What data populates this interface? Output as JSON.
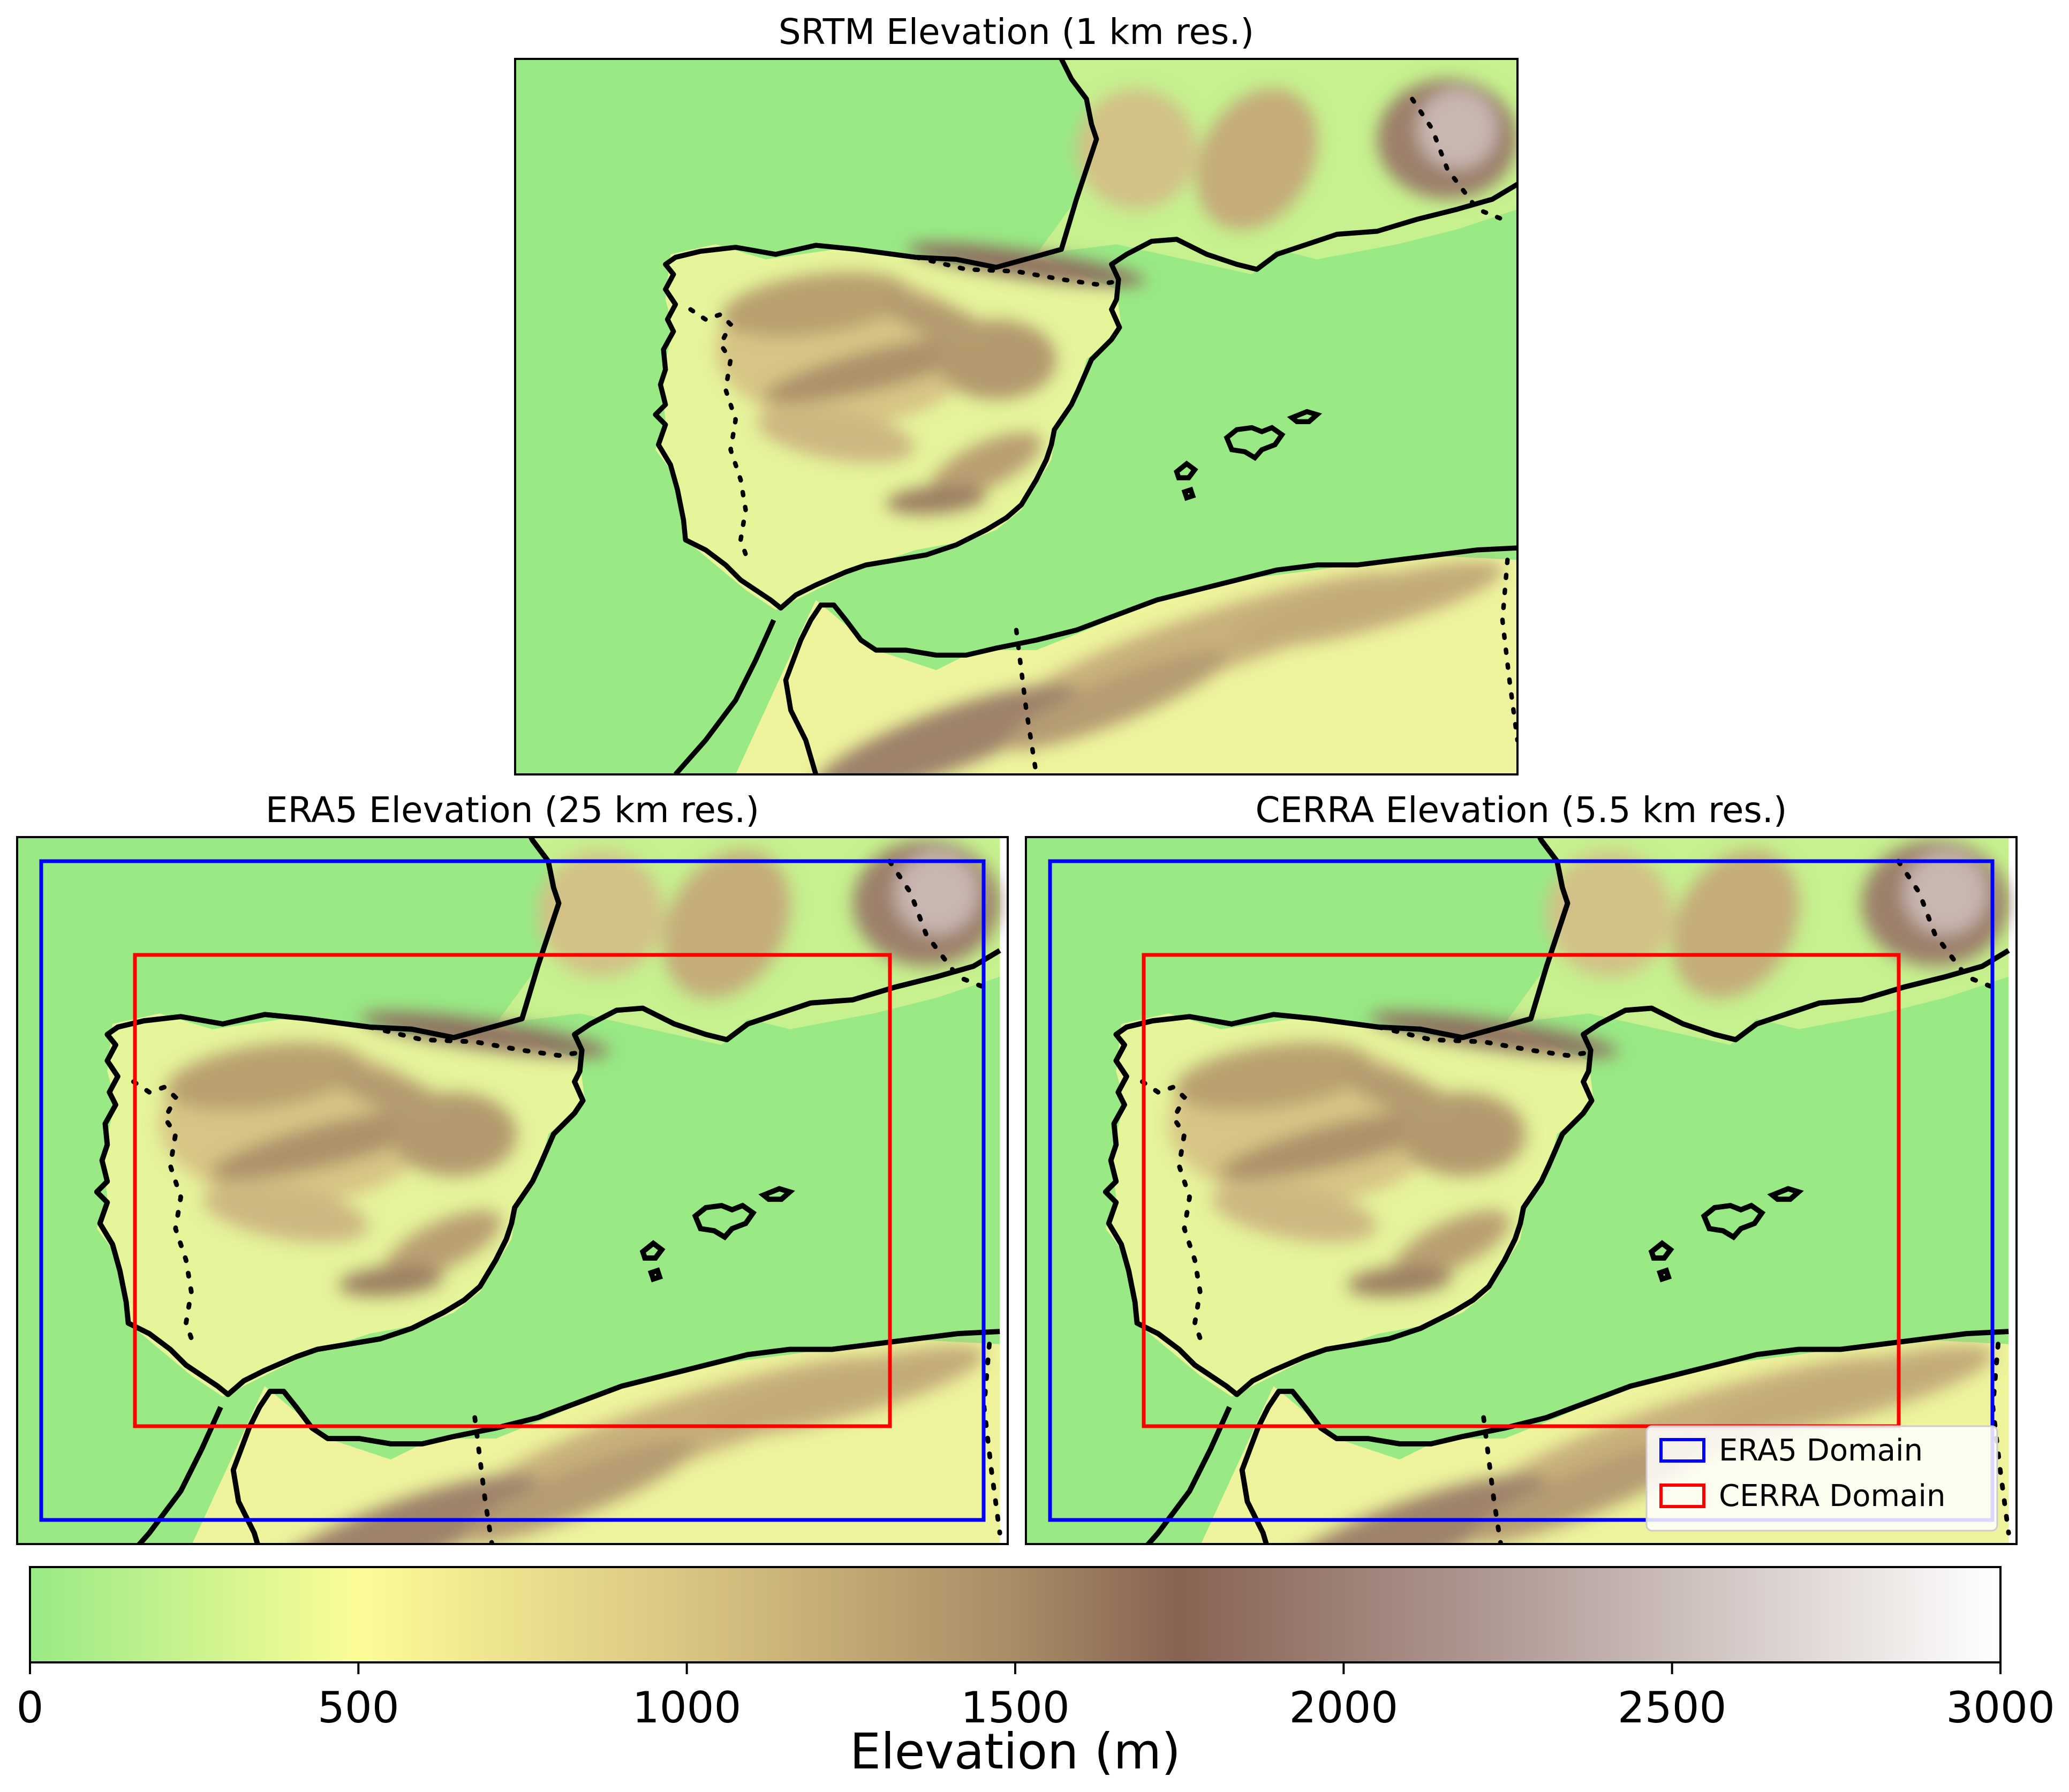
{
  "panels": {
    "srtm": {
      "title": "SRTM Elevation (1 km res.)"
    },
    "era5": {
      "title": "ERA5 Elevation (25 km res.)"
    },
    "cerra": {
      "title": "CERRA Elevation (5.5 km res.)"
    }
  },
  "legend": {
    "position": "lower-right (CERRA panel)",
    "items": [
      {
        "label": "ERA5 Domain",
        "color": "#0000ff"
      },
      {
        "label": "CERRA Domain",
        "color": "#ff0000"
      }
    ]
  },
  "colorbar": {
    "label": "Elevation (m)",
    "range": [
      0,
      3000
    ],
    "ticks": [
      "0",
      "500",
      "1000",
      "1500",
      "2000",
      "2500",
      "3000"
    ],
    "colormap": "terrain (land part)",
    "stops": [
      {
        "value": 0,
        "color": "#99ea85"
      },
      {
        "value": 500,
        "color": "#fcfc98"
      },
      {
        "value": 1000,
        "color": "#d9c582"
      },
      {
        "value": 1500,
        "color": "#a78c66"
      },
      {
        "value": 1750,
        "color": "#886353"
      },
      {
        "value": 2250,
        "color": "#b19c97"
      },
      {
        "value": 3000,
        "color": "#ffffff"
      }
    ]
  },
  "colors": {
    "lowland": "#99ea85",
    "coastline": "#000000",
    "era5_domain": "#0000ff",
    "cerra_domain": "#ff0000"
  }
}
